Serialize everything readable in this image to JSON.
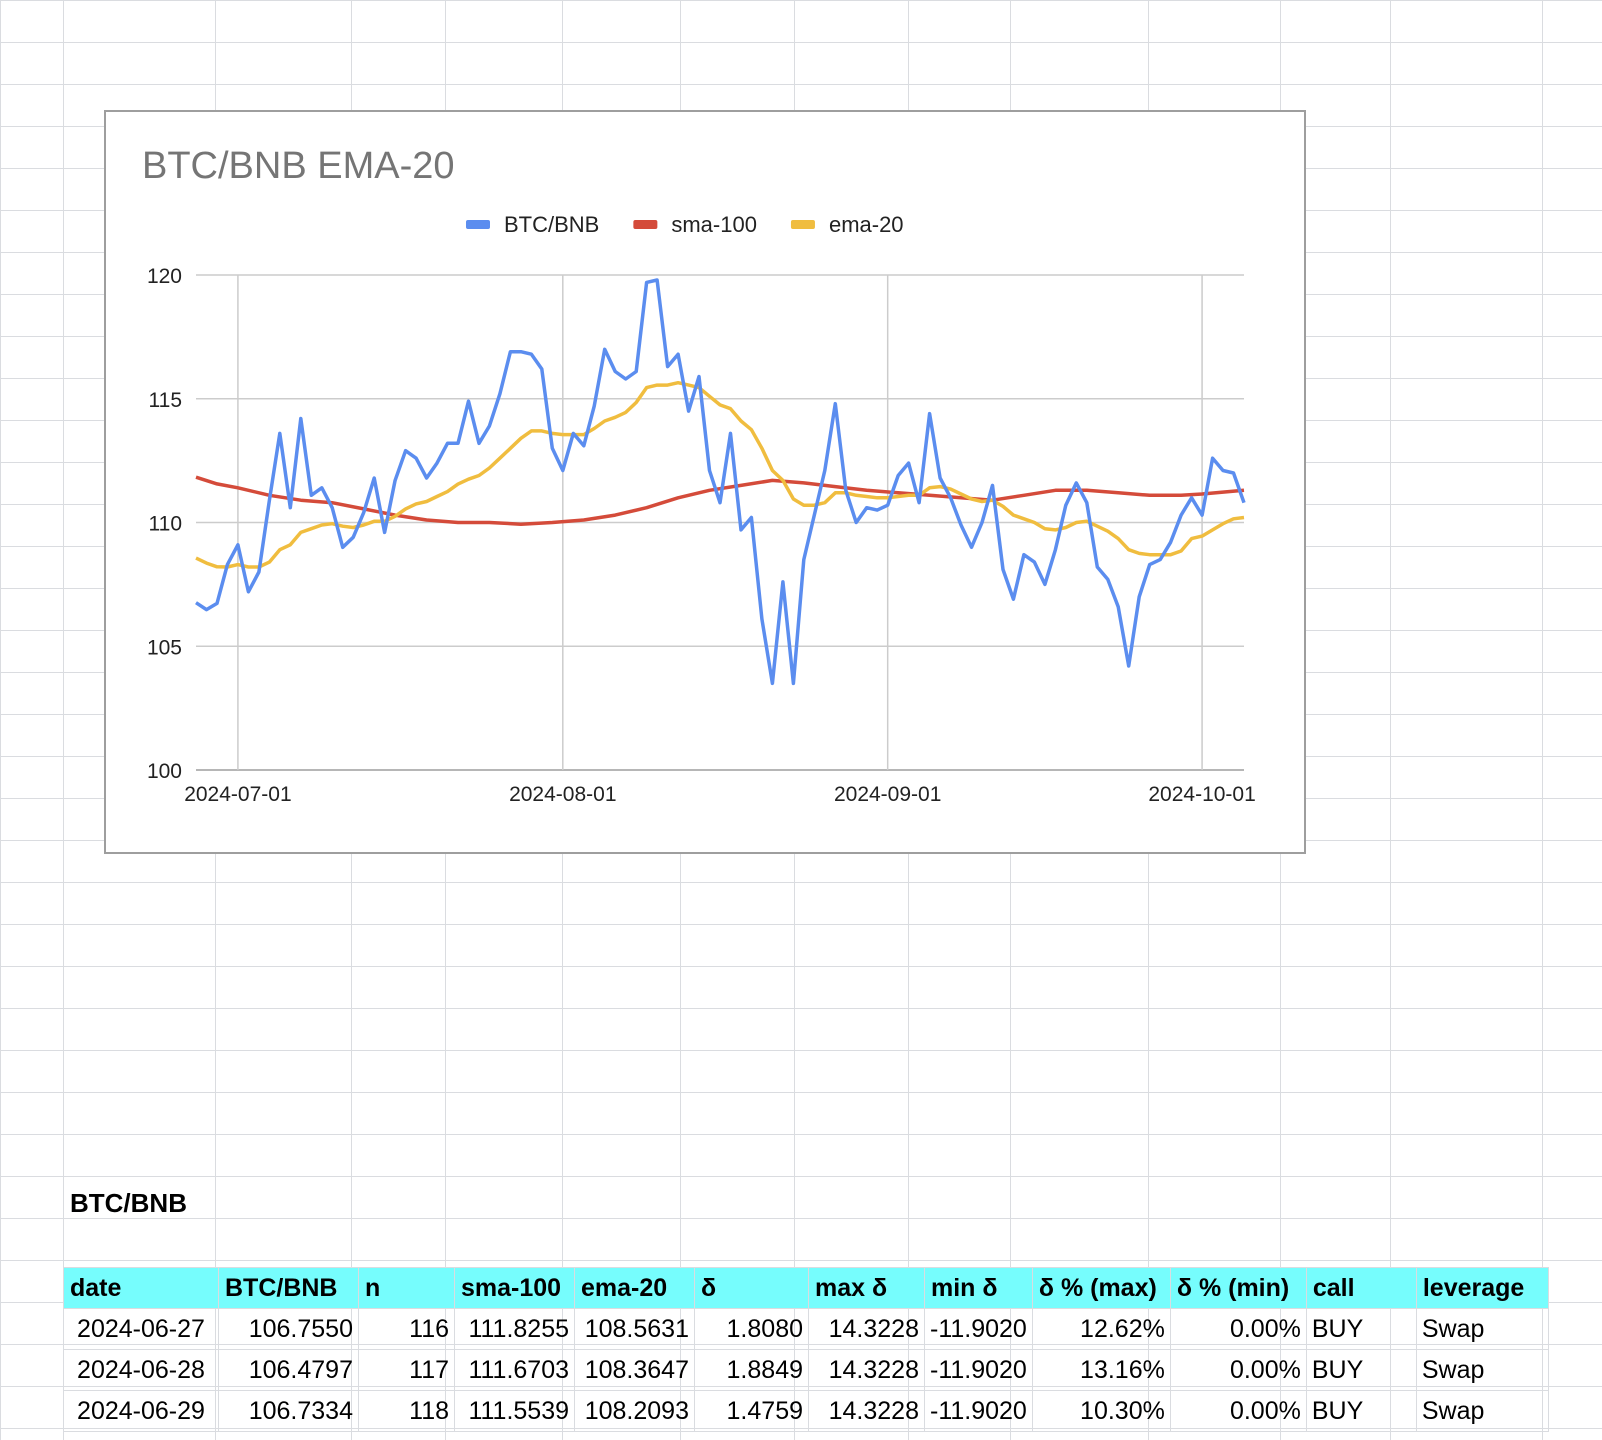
{
  "chart_data": {
    "type": "line",
    "title": "BTC/BNB EMA-20",
    "xlabel": "",
    "ylabel": "",
    "ylim": [
      100,
      120
    ],
    "yticks": [
      100,
      105,
      110,
      115,
      120
    ],
    "xticks": [
      "2024-07-01",
      "2024-08-01",
      "2024-09-01",
      "2024-10-01"
    ],
    "grid": true,
    "legend_position": "top",
    "series": [
      {
        "name": "BTC/BNB",
        "color": "#5b8def",
        "points": [
          [
            "2024-06-27",
            106.76
          ],
          [
            "2024-06-28",
            106.48
          ],
          [
            "2024-06-29",
            106.73
          ],
          [
            "2024-06-30",
            108.3
          ],
          [
            "2024-07-01",
            109.1
          ],
          [
            "2024-07-02",
            107.2
          ],
          [
            "2024-07-03",
            108.0
          ],
          [
            "2024-07-04",
            110.9
          ],
          [
            "2024-07-05",
            113.6
          ],
          [
            "2024-07-06",
            110.6
          ],
          [
            "2024-07-07",
            114.2
          ],
          [
            "2024-07-08",
            111.1
          ],
          [
            "2024-07-09",
            111.4
          ],
          [
            "2024-07-10",
            110.6
          ],
          [
            "2024-07-11",
            109.0
          ],
          [
            "2024-07-12",
            109.4
          ],
          [
            "2024-07-13",
            110.4
          ],
          [
            "2024-07-14",
            111.8
          ],
          [
            "2024-07-15",
            109.6
          ],
          [
            "2024-07-16",
            111.7
          ],
          [
            "2024-07-17",
            112.9
          ],
          [
            "2024-07-18",
            112.6
          ],
          [
            "2024-07-19",
            111.8
          ],
          [
            "2024-07-20",
            112.4
          ],
          [
            "2024-07-21",
            113.2
          ],
          [
            "2024-07-22",
            113.2
          ],
          [
            "2024-07-23",
            114.9
          ],
          [
            "2024-07-24",
            113.2
          ],
          [
            "2024-07-25",
            113.9
          ],
          [
            "2024-07-26",
            115.2
          ],
          [
            "2024-07-27",
            116.9
          ],
          [
            "2024-07-28",
            116.9
          ],
          [
            "2024-07-29",
            116.8
          ],
          [
            "2024-07-30",
            116.2
          ],
          [
            "2024-07-31",
            113.0
          ],
          [
            "2024-08-01",
            112.1
          ],
          [
            "2024-08-02",
            113.6
          ],
          [
            "2024-08-03",
            113.1
          ],
          [
            "2024-08-04",
            114.7
          ],
          [
            "2024-08-05",
            117.0
          ],
          [
            "2024-08-06",
            116.1
          ],
          [
            "2024-08-07",
            115.8
          ],
          [
            "2024-08-08",
            116.1
          ],
          [
            "2024-08-09",
            119.7
          ],
          [
            "2024-08-10",
            119.8
          ],
          [
            "2024-08-11",
            116.3
          ],
          [
            "2024-08-12",
            116.8
          ],
          [
            "2024-08-13",
            114.5
          ],
          [
            "2024-08-14",
            115.9
          ],
          [
            "2024-08-15",
            112.1
          ],
          [
            "2024-08-16",
            110.8
          ],
          [
            "2024-08-17",
            113.6
          ],
          [
            "2024-08-18",
            109.7
          ],
          [
            "2024-08-19",
            110.2
          ],
          [
            "2024-08-20",
            106.1
          ],
          [
            "2024-08-21",
            103.5
          ],
          [
            "2024-08-22",
            107.6
          ],
          [
            "2024-08-23",
            103.5
          ],
          [
            "2024-08-24",
            108.5
          ],
          [
            "2024-08-25",
            110.3
          ],
          [
            "2024-08-26",
            112.1
          ],
          [
            "2024-08-27",
            114.8
          ],
          [
            "2024-08-28",
            111.3
          ],
          [
            "2024-08-29",
            110.0
          ],
          [
            "2024-08-30",
            110.6
          ],
          [
            "2024-08-31",
            110.5
          ],
          [
            "2024-09-01",
            110.7
          ],
          [
            "2024-09-02",
            111.9
          ],
          [
            "2024-09-03",
            112.4
          ],
          [
            "2024-09-04",
            110.8
          ],
          [
            "2024-09-05",
            114.4
          ],
          [
            "2024-09-06",
            111.8
          ],
          [
            "2024-09-07",
            111.0
          ],
          [
            "2024-09-08",
            109.9
          ],
          [
            "2024-09-09",
            109.0
          ],
          [
            "2024-09-10",
            110.0
          ],
          [
            "2024-09-11",
            111.5
          ],
          [
            "2024-09-12",
            108.1
          ],
          [
            "2024-09-13",
            106.9
          ],
          [
            "2024-09-14",
            108.7
          ],
          [
            "2024-09-15",
            108.4
          ],
          [
            "2024-09-16",
            107.5
          ],
          [
            "2024-09-17",
            108.9
          ],
          [
            "2024-09-18",
            110.7
          ],
          [
            "2024-09-19",
            111.6
          ],
          [
            "2024-09-20",
            110.8
          ],
          [
            "2024-09-21",
            108.2
          ],
          [
            "2024-09-22",
            107.7
          ],
          [
            "2024-09-23",
            106.6
          ],
          [
            "2024-09-24",
            104.2
          ],
          [
            "2024-09-25",
            107.0
          ],
          [
            "2024-09-26",
            108.3
          ],
          [
            "2024-09-27",
            108.5
          ],
          [
            "2024-09-28",
            109.2
          ],
          [
            "2024-09-29",
            110.3
          ],
          [
            "2024-09-30",
            111.0
          ],
          [
            "2024-10-01",
            110.3
          ],
          [
            "2024-10-02",
            112.6
          ],
          [
            "2024-10-03",
            112.1
          ],
          [
            "2024-10-04",
            112.0
          ],
          [
            "2024-10-05",
            110.8
          ]
        ]
      },
      {
        "name": "sma-100",
        "color": "#d44b3a",
        "points": [
          [
            "2024-06-27",
            111.83
          ],
          [
            "2024-06-29",
            111.56
          ],
          [
            "2024-07-01",
            111.4
          ],
          [
            "2024-07-04",
            111.1
          ],
          [
            "2024-07-07",
            110.9
          ],
          [
            "2024-07-10",
            110.8
          ],
          [
            "2024-07-13",
            110.55
          ],
          [
            "2024-07-16",
            110.3
          ],
          [
            "2024-07-19",
            110.1
          ],
          [
            "2024-07-22",
            110.0
          ],
          [
            "2024-07-25",
            110.0
          ],
          [
            "2024-07-28",
            109.93
          ],
          [
            "2024-07-31",
            110.0
          ],
          [
            "2024-08-03",
            110.1
          ],
          [
            "2024-08-06",
            110.3
          ],
          [
            "2024-08-09",
            110.6
          ],
          [
            "2024-08-12",
            111.0
          ],
          [
            "2024-08-15",
            111.3
          ],
          [
            "2024-08-18",
            111.5
          ],
          [
            "2024-08-21",
            111.7
          ],
          [
            "2024-08-24",
            111.6
          ],
          [
            "2024-08-27",
            111.45
          ],
          [
            "2024-08-30",
            111.3
          ],
          [
            "2024-09-02",
            111.2
          ],
          [
            "2024-09-05",
            111.1
          ],
          [
            "2024-09-08",
            111.0
          ],
          [
            "2024-09-11",
            110.9
          ],
          [
            "2024-09-14",
            111.1
          ],
          [
            "2024-09-17",
            111.3
          ],
          [
            "2024-09-20",
            111.3
          ],
          [
            "2024-09-23",
            111.2
          ],
          [
            "2024-09-26",
            111.1
          ],
          [
            "2024-09-29",
            111.1
          ],
          [
            "2024-10-01",
            111.15
          ],
          [
            "2024-10-05",
            111.3
          ]
        ]
      },
      {
        "name": "ema-20",
        "color": "#f0bd3f",
        "points": [
          [
            "2024-06-27",
            108.56
          ],
          [
            "2024-06-28",
            108.36
          ],
          [
            "2024-06-29",
            108.21
          ],
          [
            "2024-06-30",
            108.2
          ],
          [
            "2024-07-01",
            108.3
          ],
          [
            "2024-07-02",
            108.2
          ],
          [
            "2024-07-03",
            108.2
          ],
          [
            "2024-07-04",
            108.4
          ],
          [
            "2024-07-05",
            108.9
          ],
          [
            "2024-07-06",
            109.1
          ],
          [
            "2024-07-07",
            109.6
          ],
          [
            "2024-07-08",
            109.75
          ],
          [
            "2024-07-09",
            109.9
          ],
          [
            "2024-07-10",
            109.95
          ],
          [
            "2024-07-11",
            109.85
          ],
          [
            "2024-07-12",
            109.8
          ],
          [
            "2024-07-13",
            109.9
          ],
          [
            "2024-07-14",
            110.05
          ],
          [
            "2024-07-15",
            110.05
          ],
          [
            "2024-07-16",
            110.25
          ],
          [
            "2024-07-17",
            110.55
          ],
          [
            "2024-07-18",
            110.75
          ],
          [
            "2024-07-19",
            110.85
          ],
          [
            "2024-07-20",
            111.05
          ],
          [
            "2024-07-21",
            111.25
          ],
          [
            "2024-07-22",
            111.55
          ],
          [
            "2024-07-23",
            111.75
          ],
          [
            "2024-07-24",
            111.9
          ],
          [
            "2024-07-25",
            112.2
          ],
          [
            "2024-07-26",
            112.6
          ],
          [
            "2024-07-27",
            113.0
          ],
          [
            "2024-07-28",
            113.4
          ],
          [
            "2024-07-29",
            113.7
          ],
          [
            "2024-07-30",
            113.7
          ],
          [
            "2024-07-31",
            113.6
          ],
          [
            "2024-08-01",
            113.55
          ],
          [
            "2024-08-02",
            113.55
          ],
          [
            "2024-08-03",
            113.55
          ],
          [
            "2024-08-04",
            113.8
          ],
          [
            "2024-08-05",
            114.1
          ],
          [
            "2024-08-06",
            114.25
          ],
          [
            "2024-08-07",
            114.45
          ],
          [
            "2024-08-08",
            114.85
          ],
          [
            "2024-08-09",
            115.45
          ],
          [
            "2024-08-10",
            115.55
          ],
          [
            "2024-08-11",
            115.55
          ],
          [
            "2024-08-12",
            115.65
          ],
          [
            "2024-08-13",
            115.55
          ],
          [
            "2024-08-14",
            115.45
          ],
          [
            "2024-08-15",
            115.1
          ],
          [
            "2024-08-16",
            114.75
          ],
          [
            "2024-08-17",
            114.6
          ],
          [
            "2024-08-18",
            114.1
          ],
          [
            "2024-08-19",
            113.75
          ],
          [
            "2024-08-20",
            113.0
          ],
          [
            "2024-08-21",
            112.1
          ],
          [
            "2024-08-22",
            111.7
          ],
          [
            "2024-08-23",
            110.95
          ],
          [
            "2024-08-24",
            110.7
          ],
          [
            "2024-08-25",
            110.7
          ],
          [
            "2024-08-26",
            110.8
          ],
          [
            "2024-08-27",
            111.2
          ],
          [
            "2024-08-28",
            111.2
          ],
          [
            "2024-08-29",
            111.1
          ],
          [
            "2024-08-30",
            111.05
          ],
          [
            "2024-08-31",
            111.0
          ],
          [
            "2024-09-01",
            111.0
          ],
          [
            "2024-09-02",
            111.05
          ],
          [
            "2024-09-03",
            111.1
          ],
          [
            "2024-09-04",
            111.1
          ],
          [
            "2024-09-05",
            111.4
          ],
          [
            "2024-09-06",
            111.45
          ],
          [
            "2024-09-07",
            111.35
          ],
          [
            "2024-09-08",
            111.15
          ],
          [
            "2024-09-09",
            110.95
          ],
          [
            "2024-09-10",
            110.85
          ],
          [
            "2024-09-11",
            110.9
          ],
          [
            "2024-09-12",
            110.65
          ],
          [
            "2024-09-13",
            110.3
          ],
          [
            "2024-09-14",
            110.15
          ],
          [
            "2024-09-15",
            110.0
          ],
          [
            "2024-09-16",
            109.75
          ],
          [
            "2024-09-17",
            109.7
          ],
          [
            "2024-09-18",
            109.8
          ],
          [
            "2024-09-19",
            110.0
          ],
          [
            "2024-09-20",
            110.05
          ],
          [
            "2024-09-21",
            109.85
          ],
          [
            "2024-09-22",
            109.65
          ],
          [
            "2024-09-23",
            109.35
          ],
          [
            "2024-09-24",
            108.9
          ],
          [
            "2024-09-25",
            108.75
          ],
          [
            "2024-09-26",
            108.7
          ],
          [
            "2024-09-27",
            108.7
          ],
          [
            "2024-09-28",
            108.7
          ],
          [
            "2024-09-29",
            108.85
          ],
          [
            "2024-09-30",
            109.35
          ],
          [
            "2024-10-01",
            109.45
          ],
          [
            "2024-10-02",
            109.7
          ],
          [
            "2024-10-03",
            109.95
          ],
          [
            "2024-10-04",
            110.15
          ],
          [
            "2024-10-05",
            110.2
          ]
        ]
      }
    ]
  },
  "sheet": {
    "title": "BTC/BNB",
    "columns": [
      "date",
      "BTC/BNB",
      "n",
      "sma-100",
      "ema-20",
      "δ",
      "max δ",
      "min δ",
      "δ % (max)",
      "δ % (min)",
      "call",
      "leverage"
    ],
    "rows": [
      [
        "2024-06-27",
        "106.7550",
        "116",
        "111.8255",
        "108.5631",
        "1.8080",
        "14.3228",
        "-11.9020",
        "12.62%",
        "0.00%",
        "BUY",
        "Swap"
      ],
      [
        "2024-06-28",
        "106.4797",
        "117",
        "111.6703",
        "108.3647",
        "1.8849",
        "14.3228",
        "-11.9020",
        "13.16%",
        "0.00%",
        "BUY",
        "Swap"
      ],
      [
        "2024-06-29",
        "106.7334",
        "118",
        "111.5539",
        "108.2093",
        "1.4759",
        "14.3228",
        "-11.9020",
        "10.30%",
        "0.00%",
        "BUY",
        "Swap"
      ]
    ]
  }
}
